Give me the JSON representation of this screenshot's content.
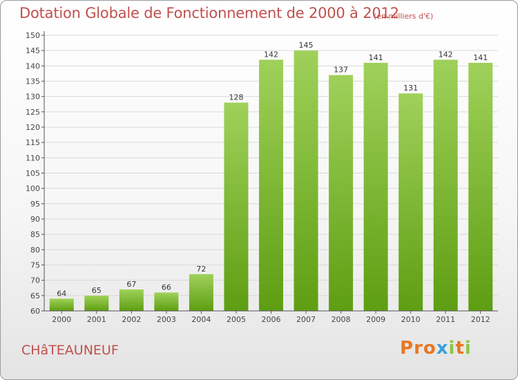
{
  "header": {
    "title": "Dotation Globale de Fonctionnement de 2000 à 2012",
    "subtitle": "(en milliers d'€)"
  },
  "footer": {
    "commune": "CHâTEAUNEUF",
    "logo_parts": [
      "P",
      "r",
      "o",
      "x",
      "i",
      "t",
      "i"
    ]
  },
  "colors": {
    "title": "#c0504d",
    "bar_top": "#9fd15a",
    "bar_bottom": "#5e9e12",
    "axis": "#555555",
    "grid": "#d9d9d9",
    "logo": [
      "#e87722",
      "#e87722",
      "#e87722",
      "#3aa0d8",
      "#8cc63f",
      "#e87722",
      "#8cc63f"
    ]
  },
  "chart_data": {
    "type": "bar",
    "categories": [
      "2000",
      "2001",
      "2002",
      "2003",
      "2004",
      "2005",
      "2006",
      "2007",
      "2008",
      "2009",
      "2010",
      "2011",
      "2012"
    ],
    "values": [
      64,
      65,
      67,
      66,
      72,
      128,
      142,
      145,
      137,
      141,
      131,
      142,
      141
    ],
    "ylim": [
      60,
      150
    ],
    "yticks": [
      60,
      65,
      70,
      75,
      80,
      85,
      90,
      95,
      100,
      105,
      110,
      115,
      120,
      125,
      130,
      135,
      140,
      145,
      150
    ],
    "grid": true,
    "data_labels": true
  }
}
